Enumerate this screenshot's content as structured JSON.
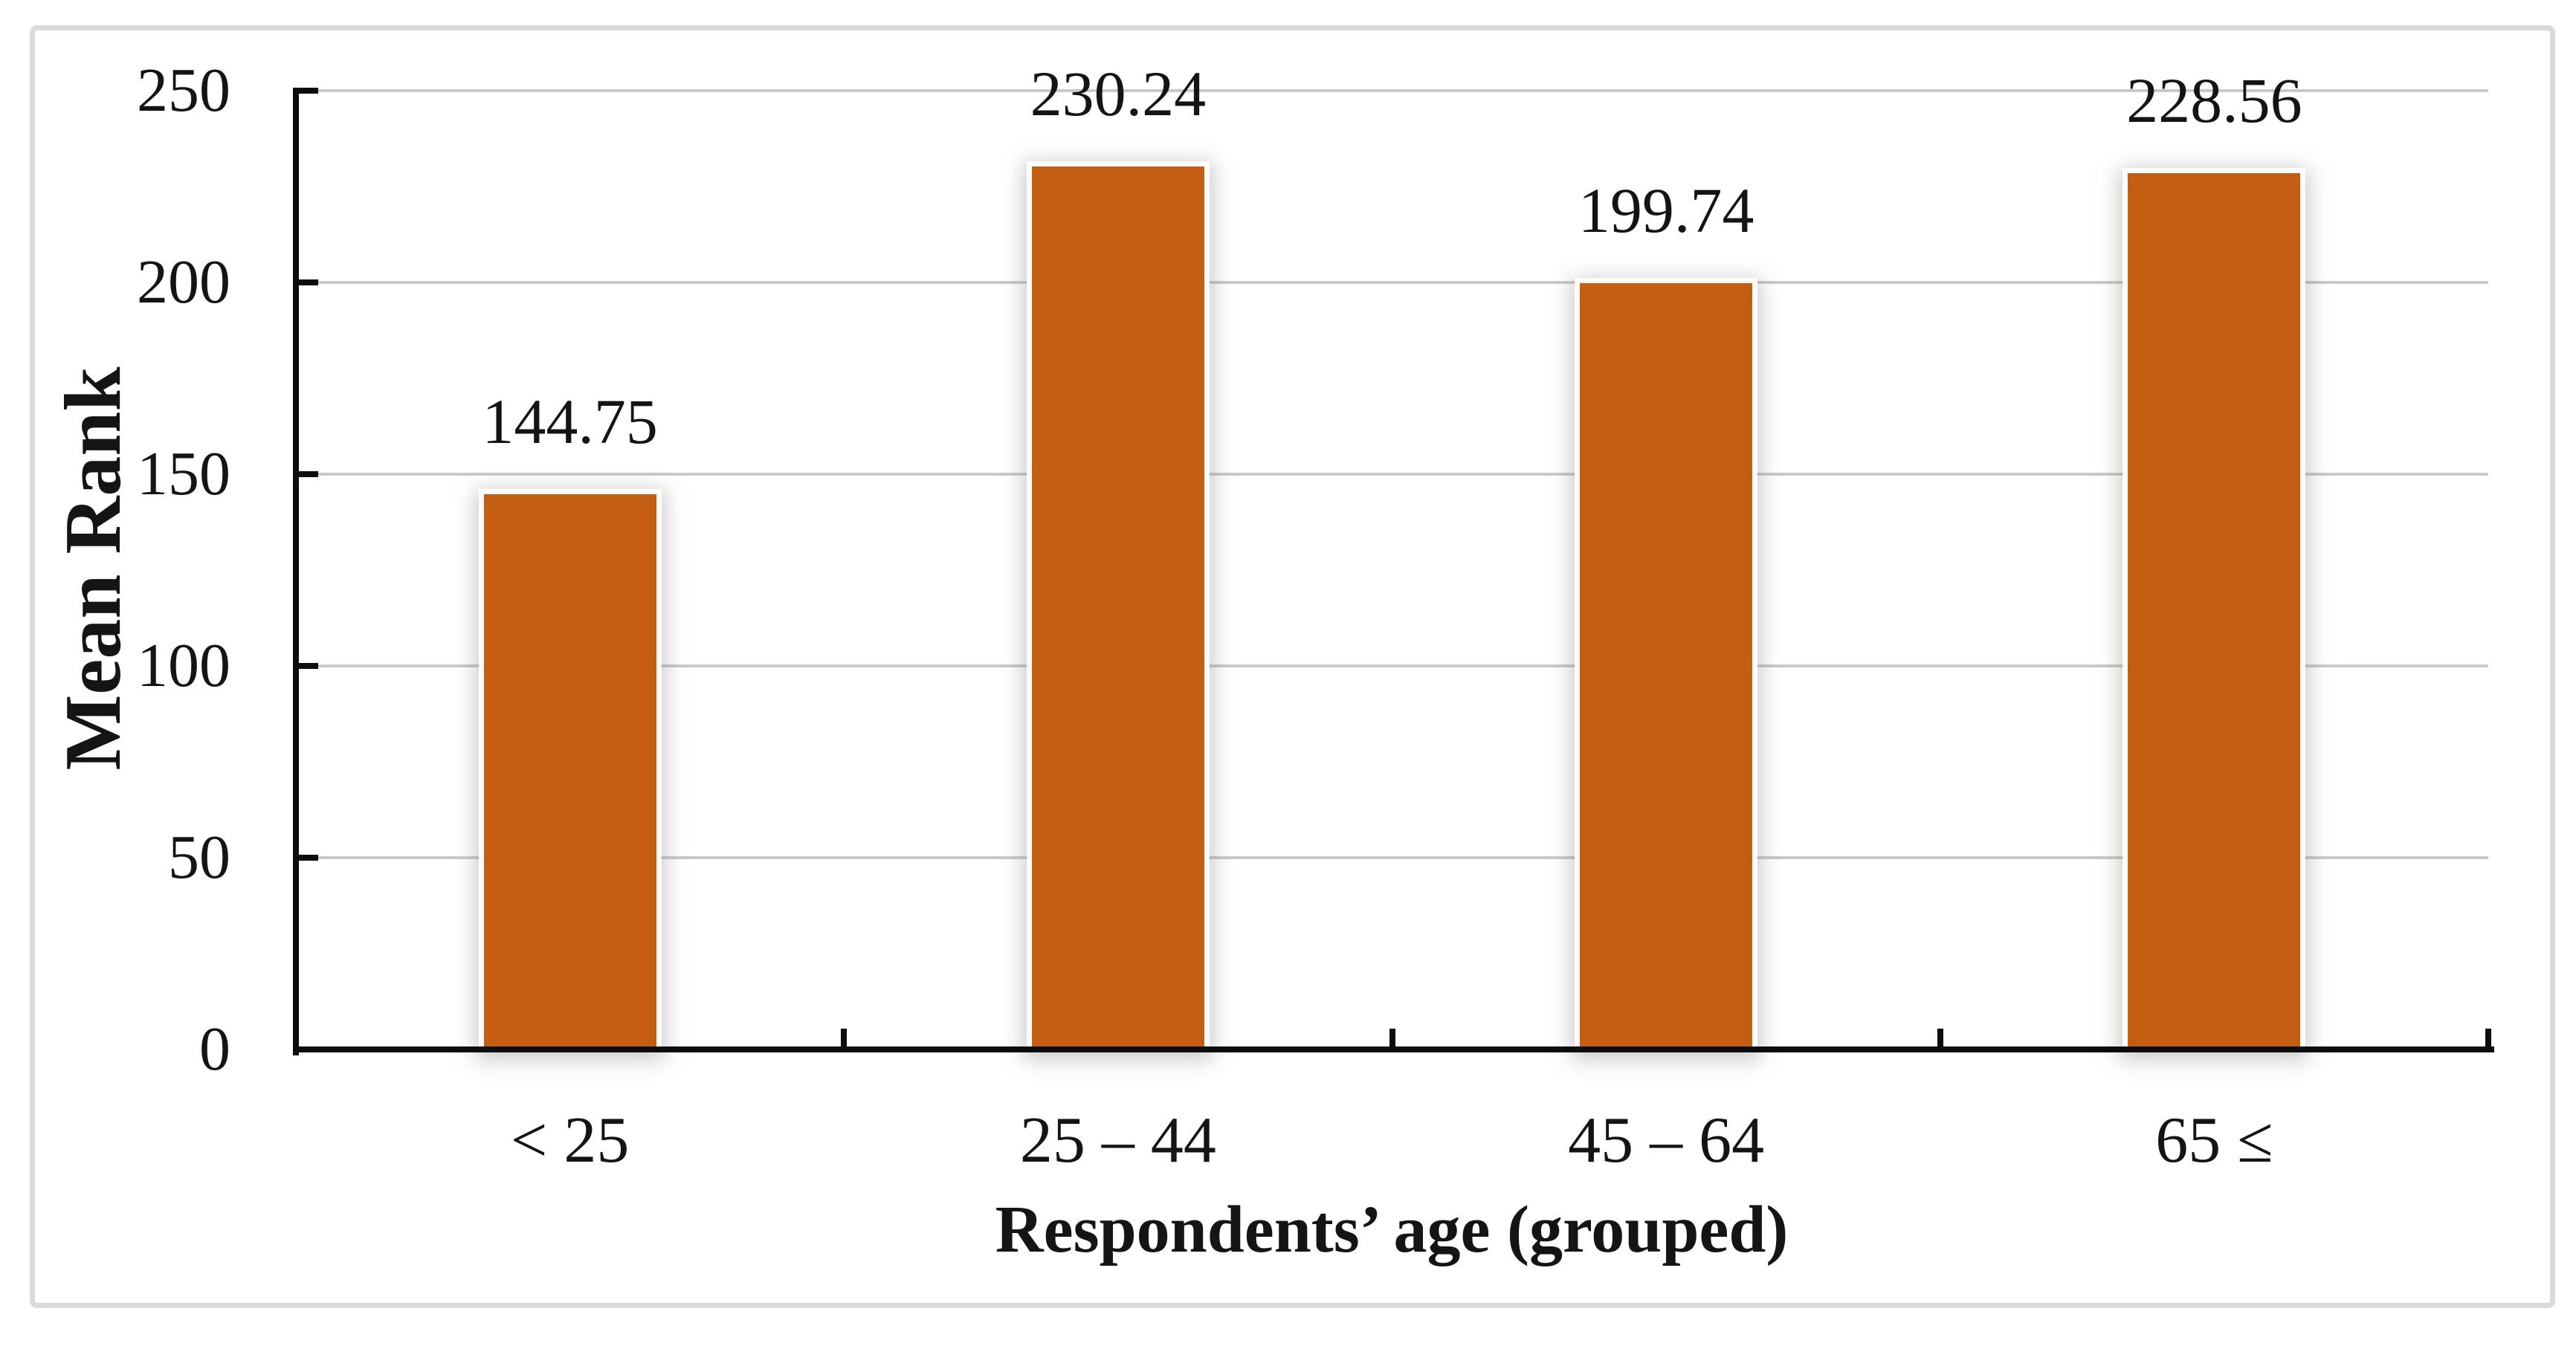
{
  "chart_data": {
    "type": "bar",
    "title": "",
    "categories": [
      "< 25",
      "25 – 44",
      "45 – 64",
      "65 ≤"
    ],
    "values": [
      144.75,
      230.24,
      199.74,
      228.56
    ],
    "data_labels": [
      "144.75",
      "230.24",
      "199.74",
      "228.56"
    ],
    "xlabel": "Respondents’ age (grouped)",
    "ylabel": "Mean Rank",
    "ylim": [
      0,
      250
    ],
    "ytick_step": 50,
    "yticks": [
      0,
      50,
      100,
      150,
      200,
      250
    ],
    "grid": "horizontal-major",
    "legend_position": "none",
    "bar_count": 4,
    "colors": {
      "bar": "#C45E12",
      "gridline": "#C9C9C9",
      "axis": "#0D0D0D",
      "text": "#141414",
      "frame_border": "#DADADA",
      "background": "#FFFFFF"
    }
  }
}
